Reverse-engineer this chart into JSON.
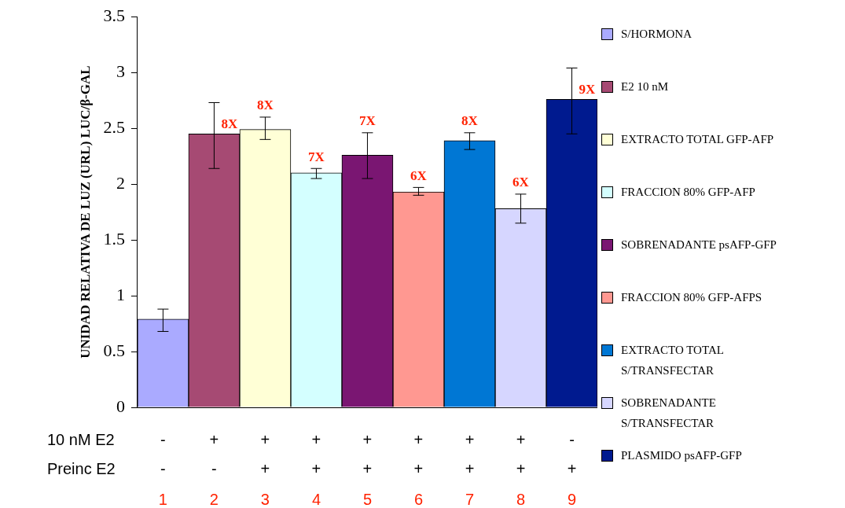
{
  "chart_data": {
    "type": "bar",
    "ylabel": "UNIDAD RELATIVA DE LUZ (URL) LUC/β-GAL",
    "categories": [
      "-\n-\n1",
      "+\n-\n2",
      "+\n+\n3",
      "+\n+\n4",
      "+\n+\n5",
      "+\n+\n6",
      "+\n+\n7",
      "+\n+\n8",
      "-\n+\n9"
    ],
    "ylim": [
      0,
      3.5
    ],
    "yticks": [
      0,
      0.5,
      1,
      1.5,
      2,
      2.5,
      3,
      3.5
    ],
    "grid": false,
    "legend": "right",
    "annotations": [
      "10 nM E2",
      "Preinc E2",
      {
        "text": "8X",
        "x": "+\n-\n2",
        "y": 2.45
      },
      {
        "text": "8X",
        "x": "+\n+\n3",
        "y": 2.49
      },
      {
        "text": "7X",
        "x": "+\n+\n4",
        "y": 2.1
      },
      {
        "text": "7X",
        "x": "+\n+\n5",
        "y": 2.26
      },
      {
        "text": "6X",
        "x": "+\n+\n6",
        "y": 1.93
      },
      {
        "text": "8X",
        "x": "+\n+\n7",
        "y": 2.39
      },
      {
        "text": "6X",
        "x": "+\n+\n8",
        "y": 1.78
      },
      {
        "text": "9X",
        "x": "-\n+\n9",
        "y": 2.76
      }
    ],
    "series": [
      {
        "name": "S/HORMONA",
        "color": "#aaaaff",
        "values": [
          0.79,
          null,
          null,
          null,
          null,
          null,
          null,
          null,
          null
        ],
        "errors": [
          [
            0.68,
            0.88
          ],
          null,
          null,
          null,
          null,
          null,
          null,
          null,
          null
        ]
      },
      {
        "name": "E2 10 nM",
        "color": "#a64a73",
        "values": [
          null,
          2.45,
          null,
          null,
          null,
          null,
          null,
          null,
          null
        ],
        "errors": [
          null,
          [
            2.14,
            2.73
          ],
          null,
          null,
          null,
          null,
          null,
          null,
          null
        ]
      },
      {
        "name": "EXTRACTO TOTAL GFP-AFP",
        "color": "#ffffd6",
        "values": [
          null,
          null,
          2.49,
          null,
          null,
          null,
          null,
          null,
          null
        ],
        "errors": [
          null,
          null,
          [
            2.4,
            2.6
          ],
          null,
          null,
          null,
          null,
          null,
          null
        ]
      },
      {
        "name": "FRACCION 80% GFP-AFP",
        "color": "#d4ffff",
        "values": [
          null,
          null,
          null,
          2.1,
          null,
          null,
          null,
          null,
          null
        ],
        "errors": [
          null,
          null,
          null,
          [
            2.05,
            2.14
          ],
          null,
          null,
          null,
          null,
          null
        ]
      },
      {
        "name": "SOBRENADANTE psAFP-GFP",
        "color": "#7a1672",
        "values": [
          null,
          null,
          null,
          null,
          2.26,
          null,
          null,
          null,
          null
        ],
        "errors": [
          null,
          null,
          null,
          null,
          [
            2.05,
            2.46
          ],
          null,
          null,
          null,
          null
        ]
      },
      {
        "name": "FRACCION 80% GFP-AFPS",
        "color": "#ff9891",
        "values": [
          null,
          null,
          null,
          null,
          null,
          1.93,
          null,
          null,
          null
        ],
        "errors": [
          null,
          null,
          null,
          null,
          null,
          [
            1.9,
            1.97
          ],
          null,
          null,
          null
        ]
      },
      {
        "name": "EXTRACTO TOTAL S/TRANSFECTAR",
        "color": "#0077d4",
        "values": [
          null,
          null,
          null,
          null,
          null,
          null,
          2.39,
          null,
          null
        ],
        "errors": [
          null,
          null,
          null,
          null,
          null,
          null,
          [
            2.31,
            2.46
          ],
          null,
          null
        ]
      },
      {
        "name": "SOBRENADANTE S/TRANSFECTAR",
        "color": "#d6d6ff",
        "values": [
          null,
          null,
          null,
          null,
          null,
          null,
          null,
          1.78,
          null
        ],
        "errors": [
          null,
          null,
          null,
          null,
          null,
          null,
          null,
          [
            1.65,
            1.91
          ],
          null
        ]
      },
      {
        "name": "PLASMIDO psAFP-GFP",
        "color": "#001a8f",
        "values": [
          null,
          null,
          null,
          null,
          null,
          null,
          null,
          null,
          2.76
        ],
        "errors": [
          null,
          null,
          null,
          null,
          null,
          null,
          null,
          null,
          [
            2.45,
            3.04
          ]
        ]
      }
    ]
  }
}
